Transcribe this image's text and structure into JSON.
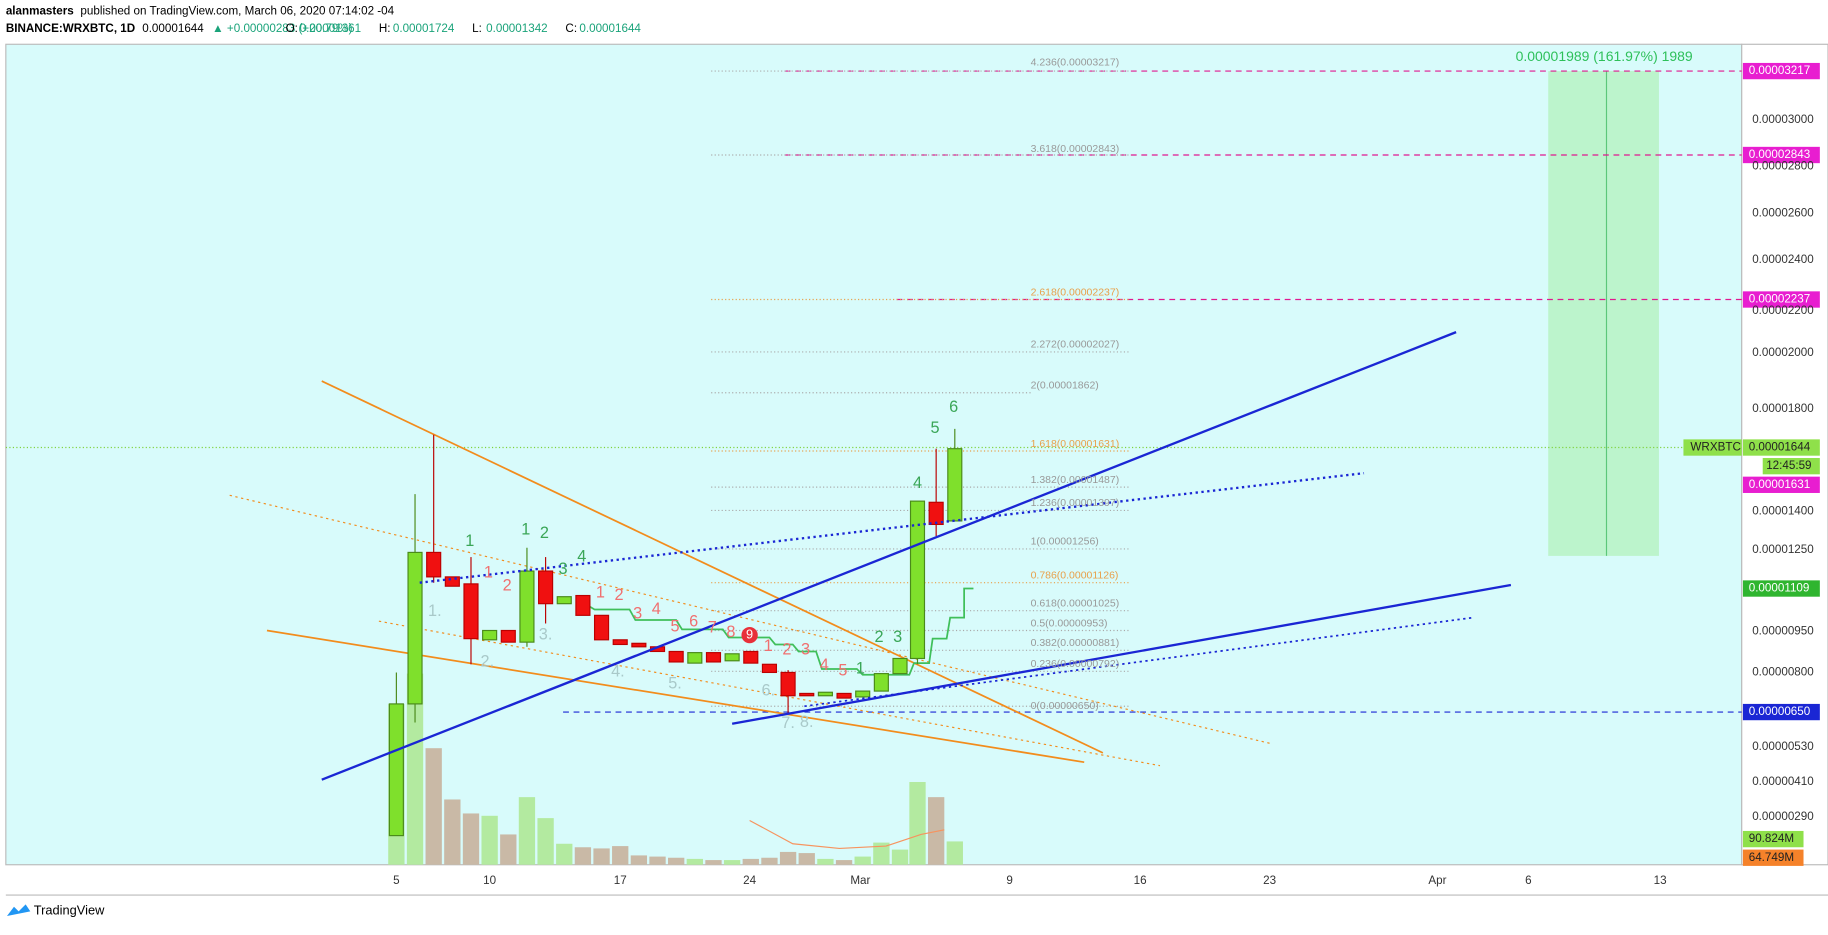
{
  "header": {
    "author": "alanmasters",
    "published": "published on TradingView.com, March 06, 2020 07:14:02 -04",
    "symbol": "BINANCE:WRXBTC, 1D",
    "last": "0.00001644",
    "change": "▲ +0.00000283 (+20.79%)",
    "ohlc": [
      {
        "key": "O:",
        "value": "0.00001361"
      },
      {
        "key": "H:",
        "value": "0.00001724"
      },
      {
        "key": "L:",
        "value": "0.00001342"
      },
      {
        "key": "C:",
        "value": "0.00001644"
      }
    ]
  },
  "price_scale": {
    "ticks": [
      "0.00003000",
      "0.00002800",
      "0.00002600",
      "0.00002400",
      "0.00002200",
      "0.00002000",
      "0.00001800",
      "0.00001400",
      "0.00001250",
      "0.00000950",
      "0.00000800",
      "0.00000530",
      "0.00000410",
      "0.00000290"
    ],
    "badges": [
      "0.00003217",
      "0.00002843",
      "0.00002237",
      "0.00001644",
      "0.00001631",
      "0.00001109",
      "0.00000650",
      "90.824M",
      "64.749M"
    ],
    "symbol_tag": "WRXBTC",
    "countdown": "12:45:59"
  },
  "time_axis": [
    "5",
    "10",
    "17",
    "24",
    "Mar",
    "9",
    "16",
    "23",
    "Apr",
    "6",
    "13"
  ],
  "fib_levels": [
    "4.236(0.00003217)",
    "3.618(0.00002843)",
    "2.618(0.00002237)",
    "2.272(0.00002027)",
    "2(0.00001862)",
    "1.618(0.00001631)",
    "1.382(0.00001487)",
    "1.236(0.00001397)",
    "1(0.00001256)",
    "0.786(0.00001126)",
    "0.618(0.00001025)",
    "0.5(0.00000953)",
    "0.382(0.00000881)",
    "0.236(0.00000792)",
    "0(0.00000650)"
  ],
  "projection_label": "0.00001989 (161.97%) 1989",
  "counts": {
    "green": [
      "1",
      "1",
      "2",
      "3",
      "4",
      "1",
      "2",
      "3",
      "4",
      "5",
      "6"
    ],
    "red": [
      "1",
      "2",
      "1",
      "2",
      "3",
      "4",
      "5",
      "6",
      "7",
      "8",
      "9",
      "1",
      "2",
      "3",
      "4",
      "5"
    ],
    "faded": [
      "1.",
      "2.",
      "3.",
      "4.",
      "5.",
      "6.",
      "7.",
      "8."
    ]
  },
  "footer": "TradingView"
}
